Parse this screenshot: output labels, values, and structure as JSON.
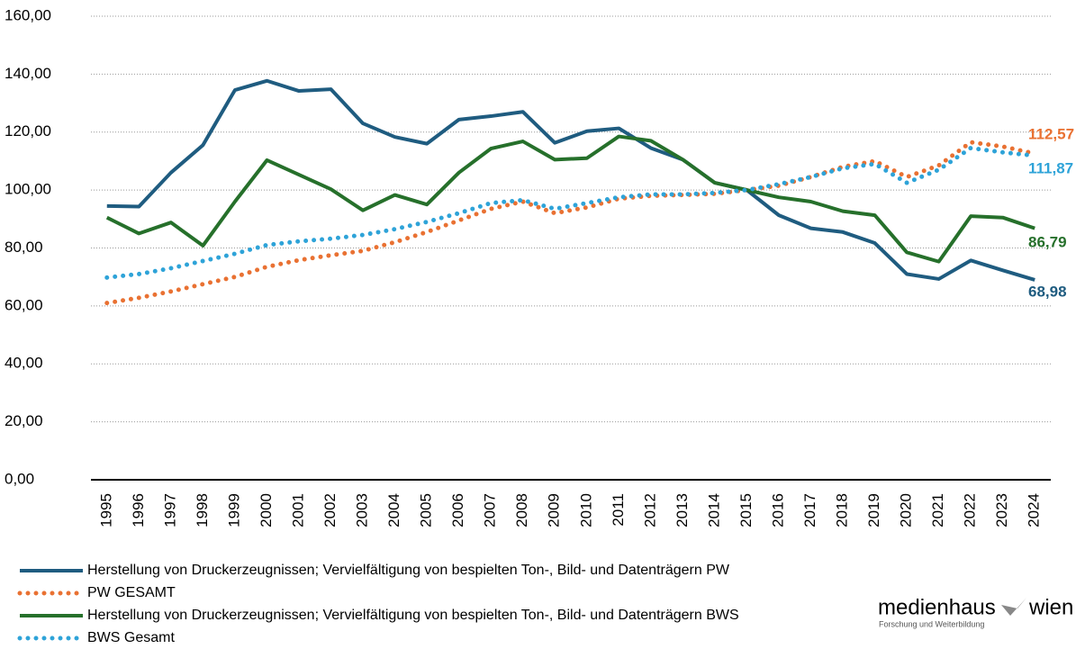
{
  "chart_data": {
    "type": "line",
    "categories": [
      "1995",
      "1996",
      "1997",
      "1998",
      "1999",
      "2000",
      "2001",
      "2002",
      "2003",
      "2004",
      "2005",
      "2006",
      "2007",
      "2008",
      "2009",
      "2010",
      "2011",
      "2012",
      "2013",
      "2014",
      "2015",
      "2016",
      "2017",
      "2018",
      "2019",
      "2020",
      "2021",
      "2022",
      "2023",
      "2024"
    ],
    "series": [
      {
        "name": "Herstellung von Druckerzeugnissen; Vervielfältigung von bespielten Ton-, Bild- und Datenträgern PW",
        "color": "#1f5c80",
        "style": "solid",
        "values": [
          94.5,
          94.3,
          106,
          115.5,
          134.5,
          137.7,
          134.2,
          134.8,
          123,
          118.3,
          116,
          124.3,
          125.5,
          127,
          116.3,
          120.3,
          121.3,
          114.5,
          110.5,
          102.5,
          100,
          91.3,
          86.8,
          85.5,
          81.7,
          71,
          69.3,
          75.7,
          72.3,
          68.98
        ],
        "value_labels": [
          null,
          null,
          null,
          null,
          null,
          null,
          null,
          null,
          null,
          null,
          null,
          null,
          null,
          null,
          null,
          null,
          null,
          null,
          null,
          null,
          null,
          null,
          null,
          null,
          null,
          null,
          null,
          null,
          null,
          "68,98"
        ]
      },
      {
        "name": "PW GESAMT",
        "color": "#e97132",
        "style": "dotted",
        "values": [
          61,
          62.8,
          65,
          67.5,
          70,
          73.5,
          75.8,
          77.5,
          79,
          82,
          85.5,
          89.5,
          93.5,
          96,
          92,
          94,
          97,
          98,
          98.3,
          98.7,
          100,
          101.5,
          104.5,
          108,
          110,
          104.5,
          108.5,
          116.5,
          115,
          112.57
        ],
        "value_labels": [
          null,
          null,
          null,
          null,
          null,
          null,
          null,
          null,
          null,
          null,
          null,
          null,
          null,
          null,
          null,
          null,
          null,
          null,
          null,
          null,
          null,
          null,
          null,
          null,
          null,
          null,
          null,
          null,
          null,
          "112,57"
        ]
      },
      {
        "name": "Herstellung von Druckerzeugnissen; Vervielfältigung von bespielten Ton-, Bild- und Datenträgern BWS",
        "color": "#26702b",
        "style": "solid",
        "values": [
          90.5,
          85,
          88.8,
          80.8,
          96,
          110.3,
          105.3,
          100.3,
          93,
          98.3,
          95,
          106,
          114.3,
          116.8,
          110.5,
          111,
          118.5,
          117,
          110.5,
          102.5,
          100,
          97.5,
          96,
          92.7,
          91.3,
          78.5,
          75.3,
          91,
          90.5,
          86.79
        ],
        "value_labels": [
          null,
          null,
          null,
          null,
          null,
          null,
          null,
          null,
          null,
          null,
          null,
          null,
          null,
          null,
          null,
          null,
          null,
          null,
          null,
          null,
          null,
          null,
          null,
          null,
          null,
          null,
          null,
          null,
          null,
          "86,79"
        ]
      },
      {
        "name": "BWS Gesamt",
        "color": "#2ea3d8",
        "style": "dotted",
        "values": [
          69.8,
          71,
          73,
          75.5,
          78,
          81,
          82.3,
          83.2,
          84.5,
          86.5,
          89,
          92,
          95.5,
          96.5,
          93.5,
          95.5,
          97.5,
          98.5,
          98.5,
          99,
          100,
          102,
          104.5,
          107.5,
          109,
          102.5,
          107,
          114.5,
          113,
          111.87
        ],
        "value_labels": [
          null,
          null,
          null,
          null,
          null,
          null,
          null,
          null,
          null,
          null,
          null,
          null,
          null,
          null,
          null,
          null,
          null,
          null,
          null,
          null,
          null,
          null,
          null,
          null,
          null,
          null,
          null,
          null,
          null,
          "111,87"
        ]
      }
    ],
    "ylim": [
      0,
      160
    ],
    "yticks": [
      {
        "value": 0,
        "label": "0,00"
      },
      {
        "value": 20,
        "label": "20,00"
      },
      {
        "value": 40,
        "label": "40,00"
      },
      {
        "value": 60,
        "label": "60,00"
      },
      {
        "value": 80,
        "label": "80,00"
      },
      {
        "value": 100,
        "label": "100,00"
      },
      {
        "value": 120,
        "label": "120,00"
      },
      {
        "value": 140,
        "label": "140,00"
      },
      {
        "value": 160,
        "label": "160,00"
      }
    ],
    "grid": true,
    "legend": "bottom"
  },
  "logo": {
    "name": "medienhaus",
    "name2": "wien",
    "subtitle": "Forschung und Weiterbildung"
  }
}
